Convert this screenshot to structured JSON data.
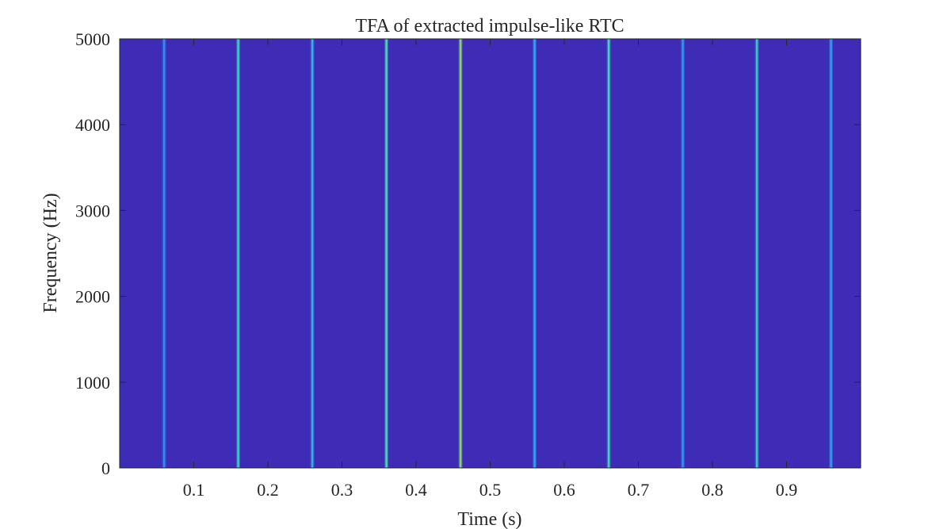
{
  "chart_data": {
    "type": "heatmap",
    "title": "TFA of extracted impulse-like RTC",
    "xlabel": "Time (s)",
    "ylabel": "Frequency (Hz)",
    "xlim": [
      0,
      1.0
    ],
    "ylim": [
      0,
      5000
    ],
    "x_ticks": [
      0.1,
      0.2,
      0.3,
      0.4,
      0.5,
      0.6,
      0.7,
      0.8,
      0.9
    ],
    "x_tick_labels": [
      "0.1",
      "0.2",
      "0.3",
      "0.4",
      "0.5",
      "0.6",
      "0.7",
      "0.8",
      "0.9"
    ],
    "y_ticks": [
      0,
      1000,
      2000,
      3000,
      4000,
      5000
    ],
    "y_tick_labels": [
      "0",
      "1000",
      "2000",
      "3000",
      "4000",
      "5000"
    ],
    "colormap": "parula",
    "background_color": "#3e2bb6",
    "impulses": [
      {
        "time": 0.06,
        "color": "#2d8ef0"
      },
      {
        "time": 0.16,
        "color": "#3ad0c2"
      },
      {
        "time": 0.26,
        "color": "#30b2e4"
      },
      {
        "time": 0.36,
        "color": "#48d8b2"
      },
      {
        "time": 0.46,
        "color": "#8ad27a"
      },
      {
        "time": 0.56,
        "color": "#2aa6ee"
      },
      {
        "time": 0.66,
        "color": "#42d4ba"
      },
      {
        "time": 0.76,
        "color": "#2c98ef"
      },
      {
        "time": 0.86,
        "color": "#36c6cc"
      },
      {
        "time": 0.96,
        "color": "#2f9def"
      }
    ]
  }
}
